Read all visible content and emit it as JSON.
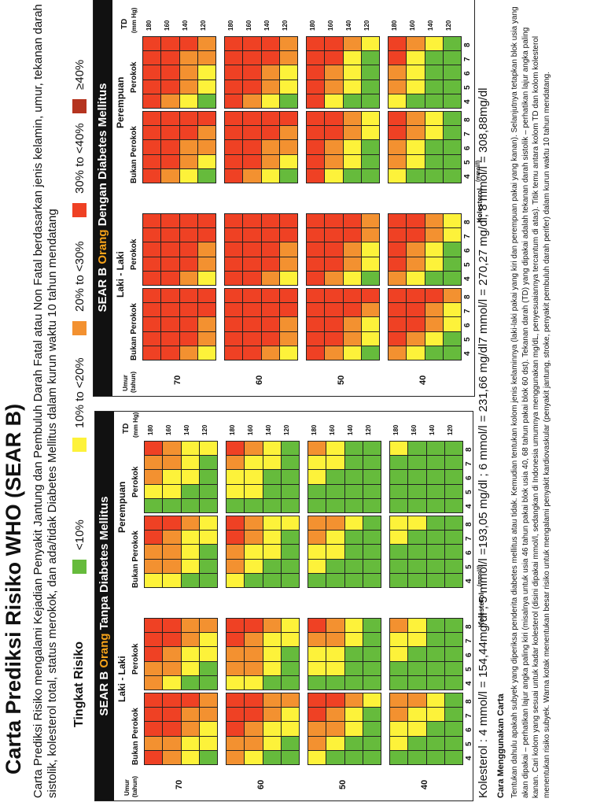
{
  "title": "Carta Prediksi Risiko WHO (SEAR B)",
  "intro": "Carta Prediksi Risiko mengalami Kejadian Penyakit Jantung dan Pembuluh Darah Fatal atau Non Fatal berdasarkan jenis kelamin, umur, tekanan darah sistolik, kolesterol total, status merokok, dan ada/tidak Diabetes Mellitus dalam kurun waktu 10 tahun mendatang",
  "legend": {
    "label": "Tingkat Risiko",
    "items": [
      {
        "text": "<10%",
        "color": "#66bb3c"
      },
      {
        "text": "10% to <20%",
        "color": "#fdf23a"
      },
      {
        "text": "20% to <30%",
        "color": "#f39130"
      },
      {
        "text": "30% to <40%",
        "color": "#ef4124"
      },
      {
        "text": "≥40%",
        "color": "#b5341f"
      }
    ]
  },
  "panels": [
    {
      "head_pre": "SEAR B ",
      "head_hl": "Orang",
      "head_post": " Tanpa Diabetes Mellitus",
      "men": "Laki - Laki",
      "women": "Perempuan",
      "umur": "Umur",
      "tahun": "(tahun)",
      "non_smoker": "Bukan Perokok",
      "smoker": "Perokok",
      "td": "TD",
      "mmhg": "(mm Hg)",
      "kol_axis": "Kolesterol",
      "kol_unit": "(mmol/l)",
      "tdv": [
        "180",
        "160",
        "140",
        "120"
      ],
      "chol": [
        "4",
        "5",
        "6",
        "7",
        "8"
      ],
      "ages": [
        "70",
        "60",
        "50",
        "40"
      ],
      "grids": {
        "age70": [
          [
            "43444",
            "33444",
            "23344",
            "12334",
            "34444",
            "33444",
            "23344",
            "12234"
          ],
          [
            "33444",
            "23344",
            "23334",
            "12233",
            "34444",
            "33444",
            "23344",
            "12233"
          ],
          [
            "22334",
            "12233",
            "12223",
            "11222",
            "33444",
            "23344",
            "12334",
            "11223"
          ],
          [
            "12233",
            "11223",
            "11122",
            "11112",
            "23344",
            "12334",
            "11223",
            "11122"
          ]
        ],
        "age60": [
          [
            "33444",
            "23344",
            "23344",
            "12234",
            "34444",
            "33444",
            "23344",
            "12233"
          ],
          [
            "23344",
            "23334",
            "12233",
            "12223",
            "34444",
            "23444",
            "23344",
            "12233"
          ],
          [
            "12233",
            "12223",
            "11222",
            "11122",
            "23344",
            "12334",
            "11233",
            "11122"
          ],
          [
            "11223",
            "11122",
            "11112",
            "11111",
            "12334",
            "11223",
            "11122",
            "11112"
          ]
        ],
        "age50": [
          [
            "23344",
            "12234",
            "12233",
            "11223",
            "23444",
            "23344",
            "12234",
            "11223"
          ],
          [
            "12334",
            "12233",
            "11223",
            "11122",
            "23444",
            "12334",
            "11223",
            "11122"
          ],
          [
            "11223",
            "11122",
            "11112",
            "11111",
            "12334",
            "11223",
            "11122",
            "11111"
          ],
          [
            "11112",
            "11111",
            "11111",
            "11111",
            "11223",
            "11122",
            "11111",
            "11111"
          ]
        ],
        "age40": [
          [
            "12233",
            "11223",
            "11122",
            "11112",
            "12334",
            "12233",
            "11223",
            "11112"
          ],
          [
            "11223",
            "11122",
            "11112",
            "11111",
            "12334",
            "11223",
            "11122",
            "11111"
          ],
          [
            "11122",
            "11111",
            "11111",
            "11111",
            "11223",
            "11122",
            "11111",
            "11111"
          ],
          [
            "11111",
            "11111",
            "11111",
            "11111",
            "11122",
            "11111",
            "11111",
            "11111"
          ]
        ]
      }
    },
    {
      "head_pre": "SEAR B ",
      "head_hl": "Orang",
      "head_post": " Dengan Diabetes Mellitus",
      "men": "Laki - Laki",
      "women": "Perempuan",
      "umur": "Umur",
      "tahun": "(tahun)",
      "non_smoker": "Bukan Perokok",
      "smoker": "Perokok",
      "td": "TD",
      "mmhg": "(mm Hg)",
      "kol_axis": "Kolesterol",
      "kol_unit": "(mmol/l)",
      "tdv": [
        "180",
        "160",
        "140",
        "120"
      ],
      "chol": [
        "4",
        "5",
        "6",
        "7",
        "8"
      ],
      "ages": [
        "70",
        "60",
        "50",
        "40"
      ],
      "grids": {
        "age70": [
          [
            "44444",
            "44444",
            "44444",
            "44444",
            "34444",
            "34444",
            "34444",
            "34444"
          ],
          [
            "44444",
            "44444",
            "34444",
            "34444",
            "34444",
            "34444",
            "34444",
            "34444"
          ],
          [
            "34444",
            "34444",
            "23344",
            "23334",
            "34444",
            "34444",
            "23344",
            "23344"
          ],
          [
            "23344",
            "23344",
            "12334",
            "12233",
            "23344",
            "23344",
            "12334",
            "12234"
          ]
        ],
        "age60": [
          [
            "44444",
            "44444",
            "44444",
            "44444",
            "44444",
            "34444",
            "34444",
            "34444"
          ],
          [
            "44444",
            "44444",
            "34444",
            "34444",
            "34444",
            "34444",
            "34444",
            "34444"
          ],
          [
            "34444",
            "34444",
            "23344",
            "23344",
            "34444",
            "34444",
            "23344",
            "23344"
          ],
          [
            "23344",
            "23344",
            "12334",
            "12233",
            "23344",
            "23344",
            "12234",
            "12233"
          ]
        ],
        "age50": [
          [
            "44444",
            "44444",
            "44444",
            "44444",
            "34444",
            "34444",
            "34444",
            "34444"
          ],
          [
            "34444",
            "34444",
            "23344",
            "23344",
            "34444",
            "23444",
            "23344",
            "23344"
          ],
          [
            "23344",
            "23344",
            "12233",
            "12223",
            "23344",
            "23344",
            "12234",
            "11223"
          ],
          [
            "12234",
            "12233",
            "11122",
            "11112",
            "12334",
            "12233",
            "11223",
            "11122"
          ]
        ],
        "age40": [
          [
            "34444",
            "34444",
            "23344",
            "23344",
            "34444",
            "23344",
            "23344",
            "12334"
          ],
          [
            "23444",
            "23344",
            "12233",
            "12223",
            "23344",
            "23344",
            "12234",
            "11223"
          ],
          [
            "12334",
            "12233",
            "11122",
            "11112",
            "12334",
            "12233",
            "11223",
            "11112"
          ],
          [
            "11223",
            "11122",
            "11111",
            "11111",
            "11223",
            "11122",
            "11112",
            "11111"
          ]
        ]
      }
    }
  ],
  "kolesterol_line": "Kolesterol :  4 mmol/l =  154,44mg/dl  ;  5 mmol/l =193,05  mg/dl  ;  6 mmol/l = 231,66 mg/dl7 mmol/l = 270,27 mg/dl;  8 mmol/l = 308,88mg/dl",
  "cara_title": "Cara Menggunakan Carta",
  "cara_text": "Tentukan dahulu apakah subyek yang diperiksa penderita diabetes mellitus atau tidak. Kemudian tentukan kolom jenis kelaminnya (laki-laki pakai yang kiri dan perempuan pakai yang kanan). Selanjutnya tetapkan blok usia yang akan dipakai – perhatikan lajur angka paling kiri (misalnya untuk usia 46 tahun pakai blok usia 40, 68 tahun pakai blok 60 dst). Tekanan darah (TD) yang dipakai adalah tekanan darah sistolik – perhatikan lajur angka paling kanan. Cari kolom yang sesuai untuk kadar kolesterol (disini dipakai mmol/l, sedangkan di Indonesia umumnya menggunakan mg/dL, penyesuaiannya tercantum di atas). Titik temu antara kolom TD dan kolom kolesterol menentukan risiko subyek. Warna kotak menentukan besar risiko untuk mengalami penyakit kardiovaskular (penyakit jantung, stroke, penyakit pembuluh darah perifer) dalam kurun waktu 10 tahun mendatang."
}
